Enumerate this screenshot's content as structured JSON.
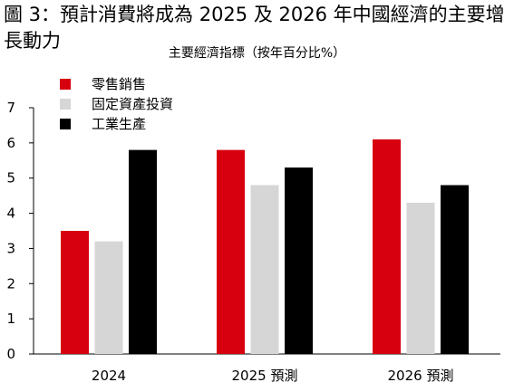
{
  "title": "圖 3：預計消費將成為 2025 及 2026 年中國經濟的主要增長動力",
  "chart_data": {
    "type": "bar",
    "title": "主要經濟指標（按年百分比%）",
    "categories": [
      "2024",
      "2025 預測",
      "2026 預測"
    ],
    "series": [
      {
        "name": "零售銷售",
        "color": "#d7000f",
        "values": [
          3.5,
          5.8,
          6.1
        ]
      },
      {
        "name": "固定資產投資",
        "color": "#d6d6d6",
        "values": [
          3.2,
          4.8,
          4.3
        ]
      },
      {
        "name": "工業生產",
        "color": "#000000",
        "values": [
          5.8,
          5.3,
          4.8
        ]
      }
    ],
    "ylim": [
      0,
      7
    ],
    "yticks": [
      "0",
      "1",
      "2",
      "3",
      "4",
      "5",
      "6",
      "7"
    ],
    "legend_position": "top-left",
    "grid": false
  }
}
